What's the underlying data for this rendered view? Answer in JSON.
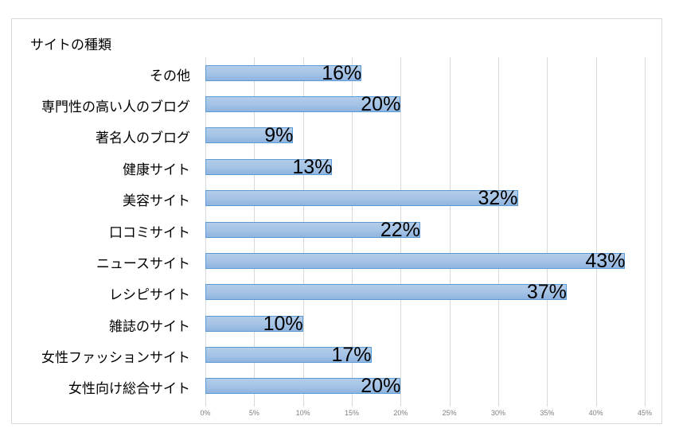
{
  "chart_data": {
    "type": "bar",
    "orientation": "horizontal",
    "title": "サイトの種類",
    "xlabel": "",
    "ylabel": "",
    "categories": [
      "その他",
      "専門性の高い人のブログ",
      "著名人のブログ",
      "健康サイト",
      "美容サイト",
      "口コミサイト",
      "ニュースサイト",
      "レシピサイト",
      "雑誌のサイト",
      "女性ファッションサイト",
      "女性向け総合サイト"
    ],
    "values": [
      16,
      20,
      9,
      13,
      32,
      22,
      43,
      37,
      10,
      17,
      20
    ],
    "value_labels": [
      "16%",
      "20%",
      "9%",
      "13%",
      "32%",
      "22%",
      "43%",
      "37%",
      "10%",
      "17%",
      "20%"
    ],
    "xlim": [
      0,
      45
    ],
    "x_ticks": [
      "0%",
      "5%",
      "10%",
      "15%",
      "20%",
      "25%",
      "30%",
      "35%",
      "40%",
      "45%"
    ],
    "grid": true,
    "legend": "none",
    "bar_color": "#9dbde4",
    "bar_border_color": "#5b9bd5"
  }
}
